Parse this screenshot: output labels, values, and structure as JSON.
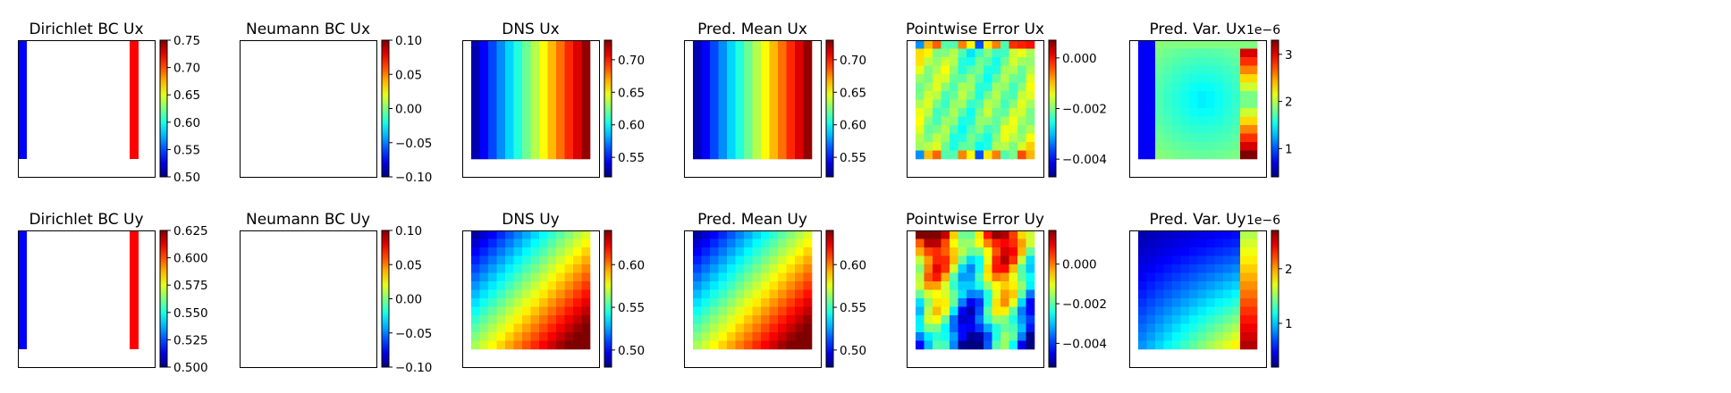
{
  "chart_data": [
    {
      "type": "heatmap",
      "title": "Dirichlet BC Ux",
      "panel_kind": "bc",
      "colorbar": {
        "min": 0.5,
        "max": 0.75,
        "ticks": [
          "0.75",
          "0.70",
          "0.65",
          "0.60",
          "0.55",
          "0.50"
        ],
        "tick_values": [
          0.75,
          0.7,
          0.65,
          0.6,
          0.55,
          0.5
        ]
      }
    },
    {
      "type": "heatmap",
      "title": "Neumann BC Ux",
      "panel_kind": "empty",
      "colorbar": {
        "min": -0.1,
        "max": 0.1,
        "ticks": [
          "0.10",
          "0.05",
          "0.00",
          "−0.05",
          "−0.10"
        ],
        "tick_values": [
          0.1,
          0.05,
          0.0,
          -0.05,
          -0.1
        ]
      }
    },
    {
      "type": "heatmap",
      "title": "DNS Ux",
      "panel_kind": "vbands",
      "colorbar": {
        "min": 0.52,
        "max": 0.73,
        "ticks": [
          "0.70",
          "0.65",
          "0.60",
          "0.55"
        ],
        "tick_values": [
          0.7,
          0.65,
          0.6,
          0.55
        ]
      }
    },
    {
      "type": "heatmap",
      "title": "Pred. Mean Ux",
      "panel_kind": "vbands",
      "colorbar": {
        "min": 0.52,
        "max": 0.73,
        "ticks": [
          "0.70",
          "0.65",
          "0.60",
          "0.55"
        ],
        "tick_values": [
          0.7,
          0.65,
          0.6,
          0.55
        ]
      }
    },
    {
      "type": "heatmap",
      "title": "Pointwise Error Ux",
      "panel_kind": "err_x",
      "colorbar": {
        "min": -0.0047,
        "max": 0.0007,
        "ticks": [
          "0.000",
          "−0.002",
          "−0.004"
        ],
        "tick_values": [
          0.0,
          -0.002,
          -0.004
        ]
      }
    },
    {
      "type": "heatmap",
      "title": "Pred. Var. Ux",
      "panel_kind": "var_x",
      "colorbar": {
        "min": 0.4,
        "max": 3.3,
        "ticks": [
          "3",
          "2",
          "1"
        ],
        "tick_values": [
          3,
          2,
          1
        ],
        "exponent": "1e−6"
      }
    },
    {
      "type": "heatmap",
      "title": "Dirichlet BC Uy",
      "panel_kind": "bc",
      "colorbar": {
        "min": 0.5,
        "max": 0.625,
        "ticks": [
          "0.625",
          "0.600",
          "0.575",
          "0.550",
          "0.525",
          "0.500"
        ],
        "tick_values": [
          0.625,
          0.6,
          0.575,
          0.55,
          0.525,
          0.5
        ]
      }
    },
    {
      "type": "heatmap",
      "title": "Neumann BC Uy",
      "panel_kind": "empty",
      "colorbar": {
        "min": -0.1,
        "max": 0.1,
        "ticks": [
          "0.10",
          "0.05",
          "0.00",
          "−0.05",
          "−0.10"
        ],
        "tick_values": [
          0.1,
          0.05,
          0.0,
          -0.05,
          -0.1
        ]
      }
    },
    {
      "type": "heatmap",
      "title": "DNS Uy",
      "panel_kind": "diag",
      "colorbar": {
        "min": 0.48,
        "max": 0.64,
        "ticks": [
          "0.60",
          "0.55",
          "0.50"
        ],
        "tick_values": [
          0.6,
          0.55,
          0.5
        ]
      }
    },
    {
      "type": "heatmap",
      "title": "Pred. Mean Uy",
      "panel_kind": "diag",
      "colorbar": {
        "min": 0.48,
        "max": 0.64,
        "ticks": [
          "0.60",
          "0.55",
          "0.50"
        ],
        "tick_values": [
          0.6,
          0.55,
          0.5
        ]
      }
    },
    {
      "type": "heatmap",
      "title": "Pointwise Error Uy",
      "panel_kind": "err_y",
      "colorbar": {
        "min": -0.0052,
        "max": 0.0017,
        "ticks": [
          "0.000",
          "−0.002",
          "−0.004"
        ],
        "tick_values": [
          0.0,
          -0.002,
          -0.004
        ]
      }
    },
    {
      "type": "heatmap",
      "title": "Pred. Var. Uy",
      "panel_kind": "var_y",
      "colorbar": {
        "min": 0.2,
        "max": 2.7,
        "ticks": [
          "2",
          "1"
        ],
        "tick_values": [
          2,
          1
        ],
        "exponent": "1e−6"
      }
    }
  ]
}
